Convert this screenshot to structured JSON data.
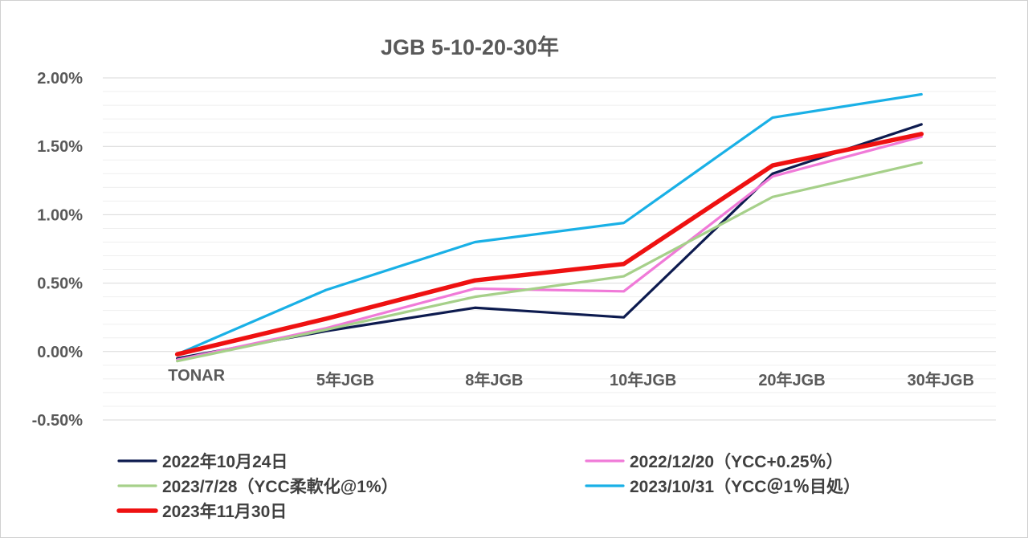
{
  "chart_data": {
    "type": "line",
    "title": "JGB 5-10-20-30年",
    "xlabel": "",
    "ylabel": "",
    "categories": [
      "TONAR",
      "5年JGB",
      "8年JGB",
      "10年JGB",
      "20年JGB",
      "30年JGB"
    ],
    "ylim": [
      -0.5,
      2.0
    ],
    "yticks": [
      2.0,
      1.5,
      1.0,
      0.5,
      0.0,
      -0.5
    ],
    "ytick_labels": [
      "2.00%",
      "1.50%",
      "1.00%",
      "0.50%",
      "0.00%",
      "-0.50%"
    ],
    "grid": true,
    "legend_position": "bottom",
    "series": [
      {
        "name": "2022年10月24日",
        "color": "#0d1b4f",
        "values": [
          -0.05,
          0.15,
          0.32,
          0.25,
          1.3,
          1.66
        ]
      },
      {
        "name": "2022/12/20（YCC+0.25％）",
        "color": "#f07ad8",
        "values": [
          -0.06,
          0.17,
          0.46,
          0.44,
          1.28,
          1.57
        ]
      },
      {
        "name": "2023/7/28（YCC柔軟化@1%）",
        "color": "#a6d08a",
        "values": [
          -0.07,
          0.16,
          0.4,
          0.55,
          1.13,
          1.38
        ]
      },
      {
        "name": "2023/10/31（YCC＠1％目処）",
        "color": "#19b0e6",
        "values": [
          -0.02,
          0.45,
          0.8,
          0.94,
          1.71,
          1.88
        ]
      },
      {
        "name": "2023年11月30日",
        "color": "#ee1111",
        "values": [
          -0.02,
          0.24,
          0.52,
          0.64,
          1.36,
          1.59
        ]
      }
    ]
  }
}
